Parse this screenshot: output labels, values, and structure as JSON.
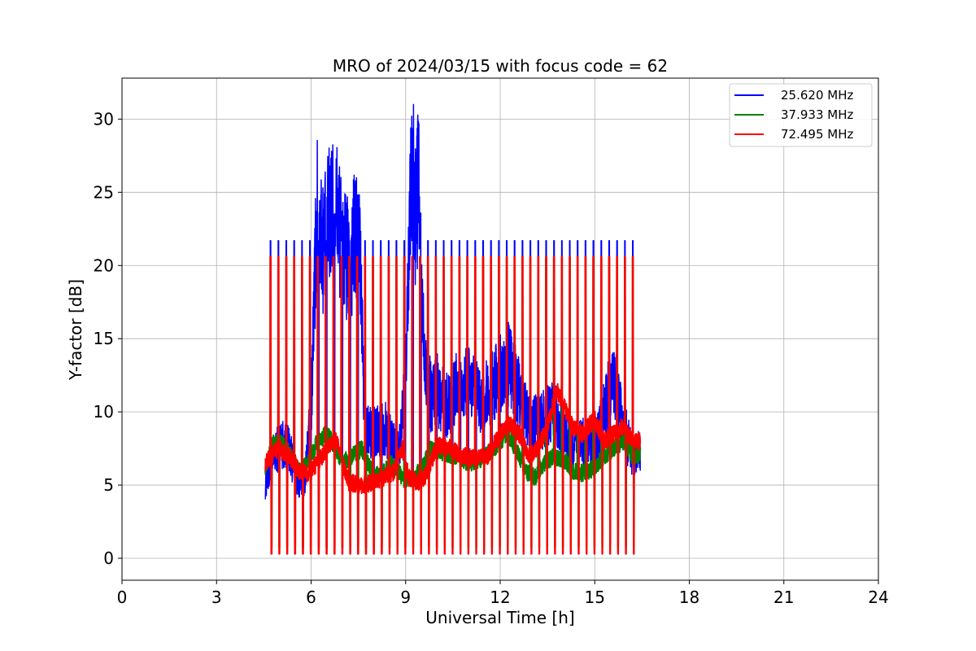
{
  "chart_data": {
    "type": "line",
    "title": "MRO of 2024/03/15 with focus code = 62",
    "xlabel": "Universal Time [h]",
    "ylabel": "Y-factor [dB]",
    "xlim": [
      0,
      24
    ],
    "ylim": [
      -1.5,
      32.8
    ],
    "xticks": [
      0,
      3,
      6,
      9,
      12,
      15,
      18,
      21,
      24
    ],
    "yticks": [
      0,
      5,
      10,
      15,
      20,
      25,
      30
    ],
    "grid": true,
    "legend_position": "top-right",
    "calibration_cycle": {
      "start": 4.55,
      "end": 16.45,
      "period": 0.25,
      "peak_fraction": [
        0.6,
        0.68
      ],
      "low_fraction": [
        0.73,
        0.8
      ]
    },
    "series": [
      {
        "name": "25.620 MHz",
        "color": "#0000ff",
        "cal_high": 21.7,
        "cal_low": 0.8,
        "baseline": [
          [
            4.55,
            5.2
          ],
          [
            4.8,
            6.5
          ],
          [
            5.0,
            8.0
          ],
          [
            5.3,
            7.5
          ],
          [
            5.6,
            5.0
          ],
          [
            5.8,
            5.5
          ],
          [
            6.0,
            10.0
          ],
          [
            6.1,
            18.0
          ],
          [
            6.2,
            24.0
          ],
          [
            6.4,
            21.0
          ],
          [
            6.6,
            23.5
          ],
          [
            6.8,
            24.0
          ],
          [
            7.0,
            21.0
          ],
          [
            7.2,
            20.0
          ],
          [
            7.4,
            22.0
          ],
          [
            7.55,
            21.0
          ],
          [
            7.7,
            9.0
          ],
          [
            8.0,
            8.5
          ],
          [
            8.3,
            9.0
          ],
          [
            8.6,
            8.0
          ],
          [
            8.8,
            7.5
          ],
          [
            9.0,
            12.0
          ],
          [
            9.1,
            20.0
          ],
          [
            9.2,
            28.0
          ],
          [
            9.3,
            23.0
          ],
          [
            9.4,
            26.0
          ],
          [
            9.5,
            18.0
          ],
          [
            9.6,
            14.0
          ],
          [
            9.8,
            11.0
          ],
          [
            10.0,
            11.5
          ],
          [
            10.3,
            10.5
          ],
          [
            10.6,
            11.5
          ],
          [
            11.0,
            12.0
          ],
          [
            11.4,
            10.5
          ],
          [
            11.8,
            12.0
          ],
          [
            12.2,
            13.5
          ],
          [
            12.5,
            12.0
          ],
          [
            12.8,
            10.0
          ],
          [
            13.0,
            9.0
          ],
          [
            13.4,
            9.5
          ],
          [
            13.7,
            10.0
          ],
          [
            14.0,
            8.5
          ],
          [
            14.3,
            7.5
          ],
          [
            14.6,
            8.0
          ],
          [
            15.0,
            7.5
          ],
          [
            15.3,
            10.0
          ],
          [
            15.6,
            12.5
          ],
          [
            15.9,
            9.0
          ],
          [
            16.2,
            7.0
          ],
          [
            16.45,
            7.2
          ]
        ]
      },
      {
        "name": "37.933 MHz",
        "color": "#008000",
        "cal_high": 20.6,
        "cal_low": 0.7,
        "baseline": [
          [
            4.55,
            6.3
          ],
          [
            4.8,
            7.8
          ],
          [
            5.0,
            8.0
          ],
          [
            5.3,
            7.2
          ],
          [
            5.6,
            6.0
          ],
          [
            5.9,
            6.5
          ],
          [
            6.2,
            8.0
          ],
          [
            6.5,
            8.5
          ],
          [
            6.8,
            7.5
          ],
          [
            7.0,
            6.5
          ],
          [
            7.3,
            7.0
          ],
          [
            7.6,
            7.5
          ],
          [
            7.9,
            6.0
          ],
          [
            8.2,
            5.5
          ],
          [
            8.5,
            6.5
          ],
          [
            8.8,
            5.8
          ],
          [
            9.0,
            5.2
          ],
          [
            9.2,
            5.5
          ],
          [
            9.5,
            6.0
          ],
          [
            9.8,
            7.5
          ],
          [
            10.2,
            7.2
          ],
          [
            10.6,
            7.0
          ],
          [
            11.0,
            6.5
          ],
          [
            11.4,
            6.8
          ],
          [
            11.8,
            7.5
          ],
          [
            12.2,
            8.5
          ],
          [
            12.5,
            7.5
          ],
          [
            12.8,
            6.0
          ],
          [
            13.1,
            5.5
          ],
          [
            13.4,
            6.5
          ],
          [
            13.7,
            7.0
          ],
          [
            14.0,
            6.8
          ],
          [
            14.3,
            6.0
          ],
          [
            14.6,
            5.8
          ],
          [
            15.0,
            6.2
          ],
          [
            15.3,
            7.0
          ],
          [
            15.6,
            7.5
          ],
          [
            15.9,
            8.0
          ],
          [
            16.2,
            7.0
          ],
          [
            16.45,
            7.0
          ]
        ]
      },
      {
        "name": "72.495 MHz",
        "color": "#ff0000",
        "cal_high": 20.6,
        "cal_low": 0.3,
        "baseline": [
          [
            4.55,
            6.5
          ],
          [
            4.8,
            7.2
          ],
          [
            5.0,
            7.5
          ],
          [
            5.3,
            7.0
          ],
          [
            5.6,
            6.0
          ],
          [
            5.9,
            5.8
          ],
          [
            6.2,
            6.5
          ],
          [
            6.5,
            7.5
          ],
          [
            6.8,
            8.0
          ],
          [
            7.0,
            6.5
          ],
          [
            7.2,
            5.2
          ],
          [
            7.6,
            5.0
          ],
          [
            8.0,
            5.2
          ],
          [
            8.3,
            5.5
          ],
          [
            8.6,
            5.8
          ],
          [
            8.9,
            7.5
          ],
          [
            9.1,
            5.5
          ],
          [
            9.4,
            5.2
          ],
          [
            9.7,
            5.8
          ],
          [
            10.0,
            7.8
          ],
          [
            10.4,
            7.5
          ],
          [
            10.8,
            7.0
          ],
          [
            11.2,
            6.8
          ],
          [
            11.6,
            7.0
          ],
          [
            12.0,
            8.5
          ],
          [
            12.3,
            9.2
          ],
          [
            12.6,
            8.5
          ],
          [
            12.9,
            7.0
          ],
          [
            13.2,
            7.5
          ],
          [
            13.5,
            9.0
          ],
          [
            13.8,
            11.5
          ],
          [
            14.0,
            10.5
          ],
          [
            14.3,
            9.0
          ],
          [
            14.6,
            8.5
          ],
          [
            15.0,
            9.5
          ],
          [
            15.3,
            8.0
          ],
          [
            15.6,
            8.5
          ],
          [
            15.9,
            9.0
          ],
          [
            16.2,
            8.0
          ],
          [
            16.45,
            8.0
          ]
        ]
      }
    ]
  }
}
